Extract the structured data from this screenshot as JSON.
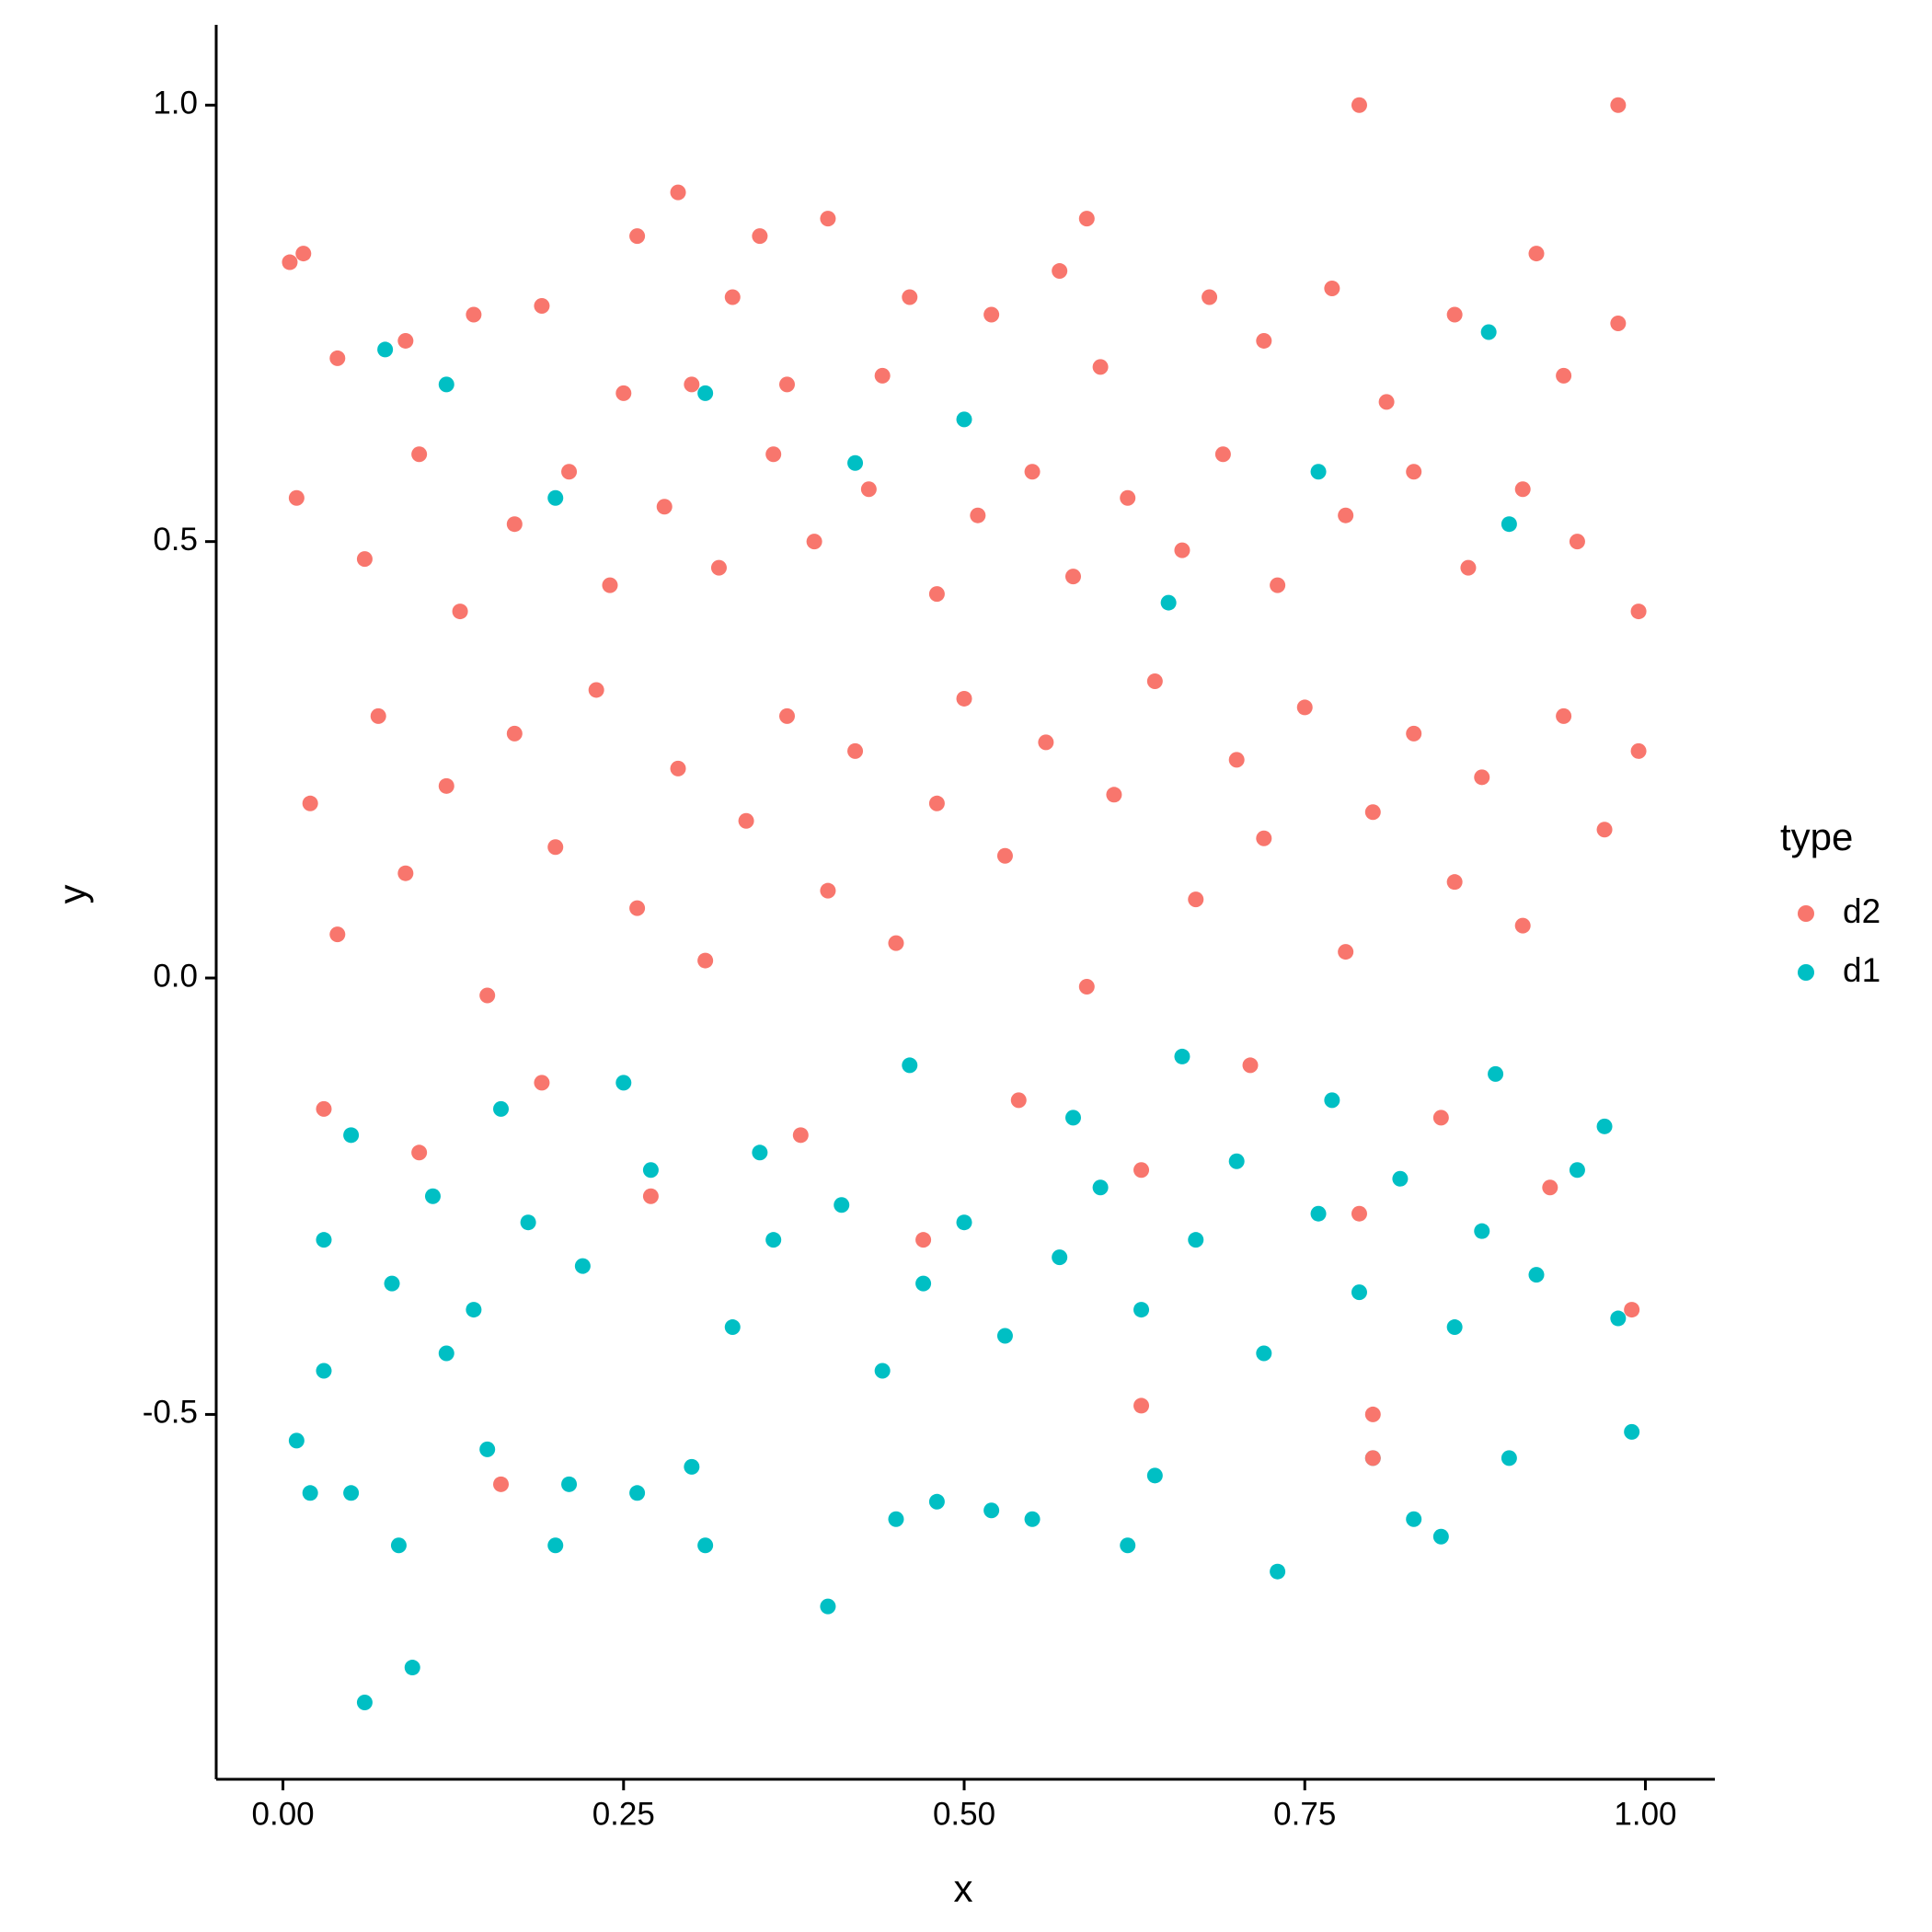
{
  "chart_data": {
    "type": "scatter",
    "x_label": "x",
    "y_label": "y",
    "legend_title": "type",
    "legend_position": "right",
    "grid": false,
    "xlim": [
      -0.049,
      1.051
    ],
    "ylim": [
      -0.918,
      1.092
    ],
    "xticks": [
      {
        "value": 0,
        "label": "0.00"
      },
      {
        "value": 0.25,
        "label": "0.25"
      },
      {
        "value": 0.5,
        "label": "0.50"
      },
      {
        "value": 0.75,
        "label": "0.75"
      },
      {
        "value": 1,
        "label": "1.00"
      }
    ],
    "yticks": [
      -0.5,
      {
        "value": 0,
        "label": "0.0"
      },
      0.5,
      {
        "value": 1,
        "label": "1.0"
      }
    ],
    "series": [
      {
        "name": "d2",
        "color": "#f8766d",
        "x": [
          0.79,
          0.98,
          0.29,
          0.005,
          0.015,
          0.26,
          0.35,
          0.4,
          0.59,
          0.57,
          0.92,
          0.16,
          0.8,
          0.8,
          0.63,
          0.04,
          0.09,
          0.14,
          0.19,
          0.25,
          0.3,
          0.33,
          0.37,
          0.44,
          0.46,
          0.52,
          0.6,
          0.68,
          0.72,
          0.77,
          0.81,
          0.86,
          0.94,
          0.98,
          0.01,
          0.06,
          0.1,
          0.13,
          0.17,
          0.21,
          0.24,
          0.28,
          0.32,
          0.36,
          0.39,
          0.43,
          0.48,
          0.51,
          0.55,
          0.58,
          0.62,
          0.66,
          0.69,
          0.73,
          0.78,
          0.83,
          0.87,
          0.91,
          0.95,
          0.995,
          0.02,
          0.04,
          0.07,
          0.09,
          0.12,
          0.15,
          0.17,
          0.2,
          0.23,
          0.26,
          0.29,
          0.31,
          0.34,
          0.37,
          0.4,
          0.42,
          0.45,
          0.48,
          0.5,
          0.53,
          0.56,
          0.59,
          0.61,
          0.64,
          0.67,
          0.7,
          0.72,
          0.75,
          0.78,
          0.8,
          0.83,
          0.86,
          0.88,
          0.91,
          0.94,
          0.97,
          0.995,
          0.03,
          0.1,
          0.19,
          0.27,
          0.38,
          0.47,
          0.54,
          0.63,
          0.71,
          0.79,
          0.85,
          0.93,
          0.99
        ],
        "values": [
          1.0,
          1.0,
          0.9,
          0.82,
          0.83,
          0.85,
          0.85,
          0.87,
          0.87,
          0.81,
          0.83,
          -0.58,
          -0.55,
          -0.5,
          -0.49,
          0.71,
          0.73,
          0.76,
          0.77,
          0.67,
          0.68,
          0.78,
          0.68,
          0.69,
          0.78,
          0.76,
          0.7,
          0.78,
          0.73,
          0.79,
          0.66,
          0.76,
          0.69,
          0.75,
          0.55,
          0.48,
          0.6,
          0.42,
          0.52,
          0.58,
          0.45,
          0.54,
          0.47,
          0.6,
          0.5,
          0.56,
          0.44,
          0.53,
          0.58,
          0.46,
          0.55,
          0.49,
          0.6,
          0.45,
          0.53,
          0.58,
          0.47,
          0.56,
          0.5,
          0.42,
          0.2,
          0.05,
          0.3,
          0.12,
          0.22,
          -0.02,
          0.28,
          0.15,
          0.33,
          0.08,
          0.24,
          0.02,
          0.18,
          0.3,
          0.1,
          0.26,
          0.04,
          0.2,
          0.32,
          0.14,
          0.27,
          -0.01,
          0.21,
          0.34,
          0.09,
          0.25,
          0.16,
          0.31,
          0.03,
          0.19,
          0.28,
          0.11,
          0.23,
          0.06,
          0.3,
          0.17,
          0.26,
          -0.15,
          -0.2,
          -0.12,
          -0.25,
          -0.18,
          -0.3,
          -0.14,
          -0.22,
          -0.1,
          -0.27,
          -0.16,
          -0.24,
          -0.38
        ]
      },
      {
        "name": "d1",
        "color": "#00bfc4",
        "x": [
          0.01,
          0.02,
          0.03,
          0.05,
          0.06,
          0.085,
          0.095,
          0.12,
          0.15,
          0.2,
          0.21,
          0.26,
          0.3,
          0.31,
          0.4,
          0.45,
          0.48,
          0.52,
          0.55,
          0.62,
          0.64,
          0.73,
          0.8,
          0.83,
          0.85,
          0.9,
          0.99,
          0.03,
          0.08,
          0.11,
          0.14,
          0.18,
          0.22,
          0.27,
          0.33,
          0.36,
          0.41,
          0.44,
          0.47,
          0.5,
          0.53,
          0.57,
          0.6,
          0.63,
          0.67,
          0.7,
          0.72,
          0.76,
          0.79,
          0.82,
          0.86,
          0.88,
          0.92,
          0.95,
          0.98,
          0.05,
          0.16,
          0.25,
          0.35,
          0.46,
          0.58,
          0.66,
          0.77,
          0.89,
          0.97,
          0.075,
          0.885,
          0.12,
          0.31,
          0.5,
          0.42,
          0.9,
          0.65,
          0.2,
          0.76
        ],
        "values": [
          -0.53,
          -0.59,
          -0.45,
          -0.59,
          -0.83,
          -0.65,
          -0.79,
          -0.43,
          -0.54,
          -0.65,
          -0.58,
          -0.59,
          -0.56,
          -0.65,
          -0.72,
          -0.62,
          -0.6,
          -0.61,
          -0.62,
          -0.65,
          -0.57,
          -0.68,
          -0.55,
          -0.62,
          -0.64,
          -0.55,
          -0.52,
          -0.3,
          -0.35,
          -0.25,
          -0.38,
          -0.28,
          -0.33,
          -0.22,
          -0.4,
          -0.3,
          -0.26,
          -0.45,
          -0.35,
          -0.28,
          -0.41,
          -0.32,
          -0.24,
          -0.38,
          -0.3,
          -0.21,
          -0.43,
          -0.27,
          -0.36,
          -0.23,
          -0.4,
          -0.29,
          -0.34,
          -0.22,
          -0.39,
          -0.18,
          -0.15,
          -0.12,
          -0.2,
          -0.1,
          -0.16,
          -0.09,
          -0.14,
          -0.11,
          -0.17,
          0.72,
          0.74,
          0.68,
          0.67,
          0.64,
          0.59,
          0.52,
          0.43,
          0.55,
          0.58
        ]
      }
    ]
  }
}
